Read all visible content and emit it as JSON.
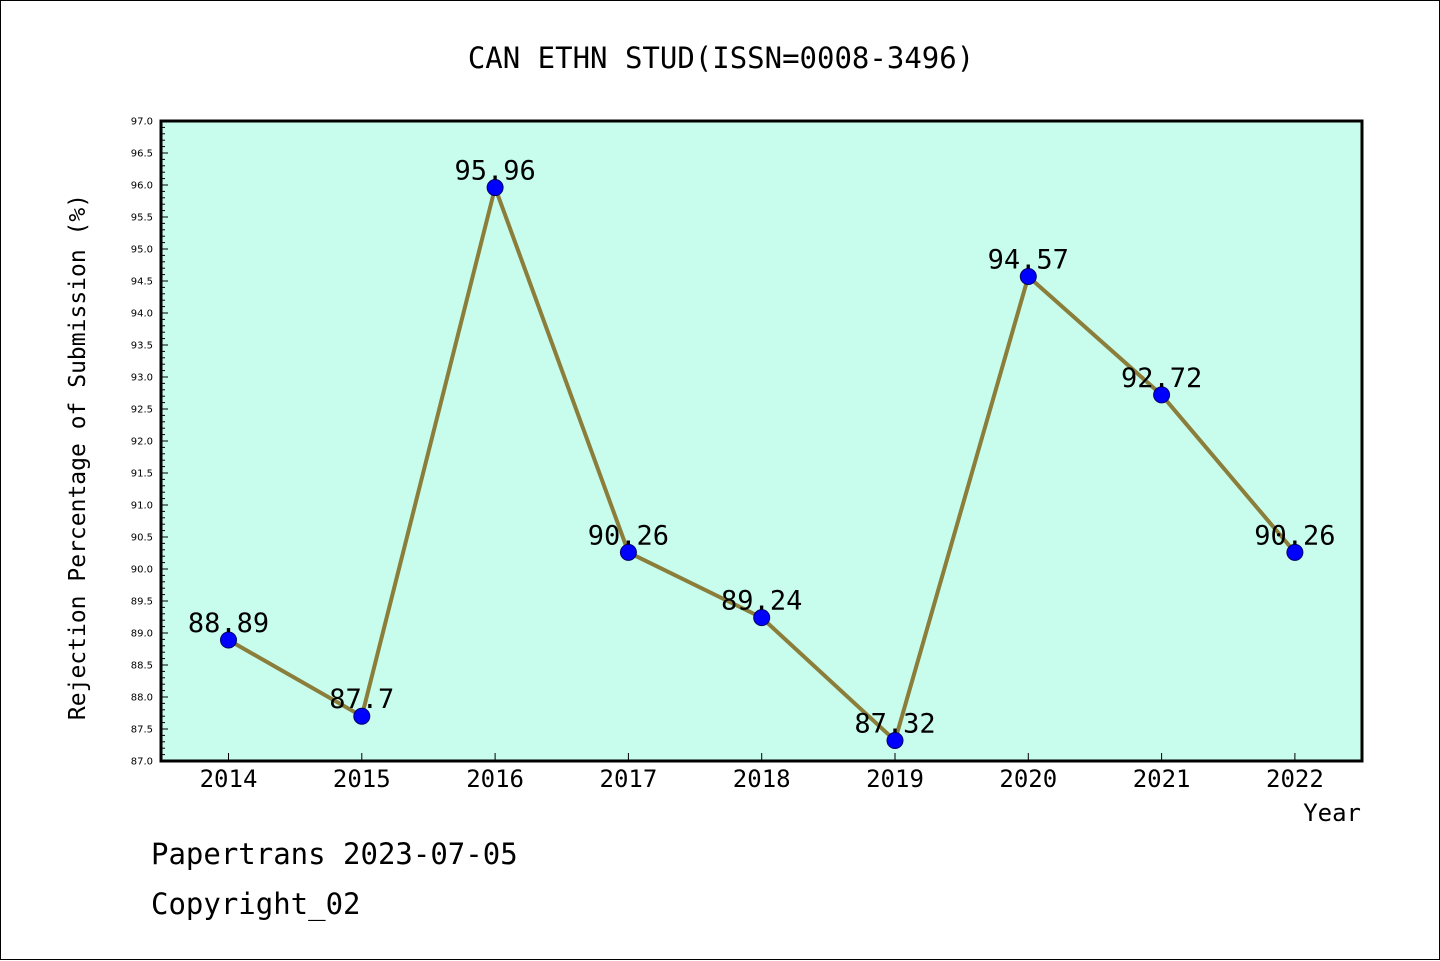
{
  "chart_data": {
    "type": "line",
    "title": "CAN ETHN STUD(ISSN=0008-3496)",
    "xlabel": "Year",
    "ylabel": "Rejection Percentage of Submission (%)",
    "categories": [
      "2014",
      "2015",
      "2016",
      "2017",
      "2018",
      "2019",
      "2020",
      "2021",
      "2022"
    ],
    "values": [
      88.89,
      87.7,
      95.96,
      90.26,
      89.24,
      87.32,
      94.57,
      92.72,
      90.26
    ],
    "data_labels": [
      "88.89",
      "87.7",
      "95.96",
      "90.26",
      "89.24",
      "87.32",
      "94.57",
      "92.72",
      "90.26"
    ],
    "ylim": [
      87.0,
      97.0
    ],
    "yticks": [
      "87.0",
      "87.5",
      "88.0",
      "88.5",
      "89.0",
      "89.5",
      "90.0",
      "90.5",
      "91.0",
      "91.5",
      "92.0",
      "92.5",
      "93.0",
      "93.5",
      "94.0",
      "94.5",
      "95.0",
      "95.5",
      "96.0",
      "96.5",
      "97.0"
    ],
    "grid": false,
    "colors": {
      "plot_background": "#c8fcec",
      "line": "#8b7d3a",
      "marker": "#0000ff"
    }
  },
  "footer": {
    "line1": "Papertrans 2023-07-05",
    "line2": "Copyright_02"
  }
}
